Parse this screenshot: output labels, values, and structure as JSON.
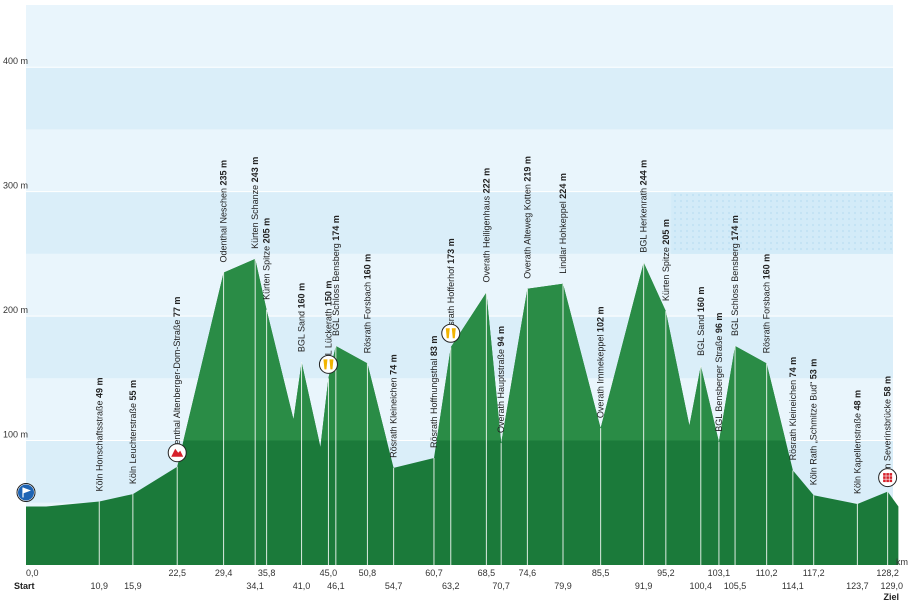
{
  "chart_data": {
    "type": "area",
    "title": "",
    "xlabel": "km",
    "ylabel": "",
    "xlim": [
      0,
      129.0
    ],
    "ylim": [
      0,
      450
    ],
    "yticks": [
      100,
      200,
      300,
      400
    ],
    "ytick_labels": [
      "100 m",
      "200 m",
      "300 m",
      "400 m"
    ],
    "grid": true,
    "start_label": "Start",
    "end_label": "Ziel",
    "profile": [
      {
        "x": 0.0,
        "y": 47
      },
      {
        "x": 3.0,
        "y": 47
      },
      {
        "x": 10.9,
        "y": 51
      },
      {
        "x": 15.9,
        "y": 57
      },
      {
        "x": 22.5,
        "y": 79
      },
      {
        "x": 29.4,
        "y": 235
      },
      {
        "x": 34.1,
        "y": 246
      },
      {
        "x": 35.8,
        "y": 205
      },
      {
        "x": 39.8,
        "y": 117
      },
      {
        "x": 41.0,
        "y": 163
      },
      {
        "x": 43.8,
        "y": 95
      },
      {
        "x": 45.0,
        "y": 150
      },
      {
        "x": 46.1,
        "y": 176
      },
      {
        "x": 50.8,
        "y": 162
      },
      {
        "x": 54.7,
        "y": 78
      },
      {
        "x": 60.7,
        "y": 86
      },
      {
        "x": 63.2,
        "y": 175
      },
      {
        "x": 68.5,
        "y": 219
      },
      {
        "x": 70.7,
        "y": 98
      },
      {
        "x": 74.6,
        "y": 222
      },
      {
        "x": 79.9,
        "y": 226
      },
      {
        "x": 85.5,
        "y": 110
      },
      {
        "x": 91.9,
        "y": 243
      },
      {
        "x": 95.2,
        "y": 204
      },
      {
        "x": 98.7,
        "y": 112
      },
      {
        "x": 100.4,
        "y": 160
      },
      {
        "x": 103.1,
        "y": 99
      },
      {
        "x": 105.5,
        "y": 176
      },
      {
        "x": 110.2,
        "y": 162
      },
      {
        "x": 114.1,
        "y": 76
      },
      {
        "x": 117.2,
        "y": 56
      },
      {
        "x": 123.7,
        "y": 49
      },
      {
        "x": 128.2,
        "y": 59
      },
      {
        "x": 129.8,
        "y": 47
      }
    ],
    "xticks_top": [
      "0,0",
      "22,5",
      "29,4",
      "35,8",
      "45,0",
      "50,8",
      "60,7",
      "68,5",
      "74,6",
      "85,5",
      "95,2",
      "103,1",
      "110,2",
      "117,2",
      "128,2"
    ],
    "xticks_top_x": [
      0.0,
      22.5,
      29.4,
      35.8,
      45.0,
      50.8,
      60.7,
      68.5,
      74.6,
      85.5,
      95.2,
      103.1,
      110.2,
      117.2,
      128.2
    ],
    "xticks_bottom": [
      "10,9",
      "15,9",
      "34,1",
      "41,0",
      "46,1",
      "54,7",
      "63,2",
      "70,7",
      "79,9",
      "91,9",
      "100,4",
      "105,5",
      "114,1",
      "123,7",
      "129,0"
    ],
    "xticks_bottom_x": [
      10.9,
      15.9,
      34.1,
      41.0,
      46.1,
      54.7,
      63.2,
      70.7,
      79.9,
      91.9,
      100.4,
      105.5,
      114.1,
      123.7,
      129.0
    ],
    "points": [
      {
        "x": 10.9,
        "y": 51,
        "name": "Köln Honschaftsstraße",
        "alt": "49 m"
      },
      {
        "x": 15.9,
        "y": 57,
        "name": "Köln Leuchterstraße",
        "alt": "55 m"
      },
      {
        "x": 22.5,
        "y": 79,
        "name": "Odenthal Altenberger-Dom-Straße",
        "alt": "77 m"
      },
      {
        "x": 29.4,
        "y": 235,
        "name": "Odenthal Neschen",
        "alt": "235 m"
      },
      {
        "x": 34.1,
        "y": 246,
        "name": "Kürten Schanze",
        "alt": "243 m"
      },
      {
        "x": 35.8,
        "y": 205,
        "name": "Kürten Spitze",
        "alt": "205 m"
      },
      {
        "x": 41.0,
        "y": 163,
        "name": "BGL Sand",
        "alt": "160 m"
      },
      {
        "x": 45.0,
        "y": 150,
        "name": "BGL Lückerath",
        "alt": "150 m"
      },
      {
        "x": 46.1,
        "y": 176,
        "name": "BGL Schloss Bensberg",
        "alt": "174 m"
      },
      {
        "x": 50.8,
        "y": 162,
        "name": "Rösrath Forsbach",
        "alt": "160 m"
      },
      {
        "x": 54.7,
        "y": 78,
        "name": "Rösrath Kleineichen",
        "alt": "74 m"
      },
      {
        "x": 60.7,
        "y": 86,
        "name": "Rösrath Hoffnungsthal",
        "alt": "83 m"
      },
      {
        "x": 63.2,
        "y": 175,
        "name": "Rösrath Hofferhof",
        "alt": "173 m"
      },
      {
        "x": 68.5,
        "y": 219,
        "name": "Overath Heiligenhaus",
        "alt": "222 m"
      },
      {
        "x": 70.7,
        "y": 98,
        "name": "Overath Hauptstraße",
        "alt": "94 m"
      },
      {
        "x": 74.6,
        "y": 222,
        "name": "Overath Alteweg Kotten",
        "alt": "219 m"
      },
      {
        "x": 79.9,
        "y": 226,
        "name": "Lindlar Hohkeppel",
        "alt": "224 m"
      },
      {
        "x": 85.5,
        "y": 110,
        "name": "Overath Immekeppel",
        "alt": "102 m"
      },
      {
        "x": 91.9,
        "y": 243,
        "name": "BGL Herkenrath",
        "alt": "244 m"
      },
      {
        "x": 95.2,
        "y": 204,
        "name": "Kürten Spitze",
        "alt": "205 m"
      },
      {
        "x": 100.4,
        "y": 160,
        "name": "BGL Sand",
        "alt": "160 m"
      },
      {
        "x": 103.1,
        "y": 99,
        "name": "BGL Bensberger Straße",
        "alt": "96 m"
      },
      {
        "x": 105.5,
        "y": 176,
        "name": "BGL Schloss Bensberg",
        "alt": "174 m"
      },
      {
        "x": 110.2,
        "y": 162,
        "name": "Rösrath Forsbach",
        "alt": "160 m"
      },
      {
        "x": 114.1,
        "y": 76,
        "name": "Rösrath Kleineichen",
        "alt": "74 m"
      },
      {
        "x": 117.2,
        "y": 56,
        "name": "Köln Rath „Schmitze Bud“",
        "alt": "53 m"
      },
      {
        "x": 123.7,
        "y": 49,
        "name": "Köln Kapellenstraße",
        "alt": "48 m"
      },
      {
        "x": 128.2,
        "y": 59,
        "name": "Köln Severinsbrücke",
        "alt": "58 m"
      }
    ],
    "markers": [
      {
        "x": 0.0,
        "y": 47,
        "icon": "start-flag-icon",
        "color": "#1e64b4"
      },
      {
        "x": 22.5,
        "y": 79,
        "icon": "mountain-icon",
        "color": "#d6202a"
      },
      {
        "x": 45.0,
        "y": 150,
        "icon": "feed-zone-icon",
        "color": "#f2b400"
      },
      {
        "x": 63.2,
        "y": 175,
        "icon": "feed-zone-icon",
        "color": "#f2b400"
      },
      {
        "x": 128.2,
        "y": 59,
        "icon": "finish-icon",
        "color": "#d6202a"
      }
    ],
    "colors": {
      "area": "#1b7a3a",
      "sky_a": "#daeef9",
      "sky_b": "#e9f5fc"
    }
  }
}
